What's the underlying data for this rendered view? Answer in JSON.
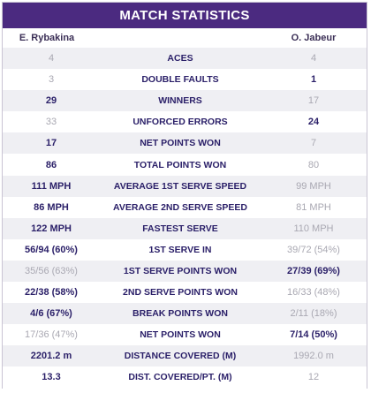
{
  "title": "MATCH STATISTICS",
  "players": {
    "left": "E. Rybakina",
    "right": "O. Jabeur"
  },
  "rows": [
    {
      "label": "ACES",
      "left": "4",
      "right": "4",
      "leader": "none"
    },
    {
      "label": "DOUBLE FAULTS",
      "left": "3",
      "right": "1",
      "leader": "right"
    },
    {
      "label": "WINNERS",
      "left": "29",
      "right": "17",
      "leader": "left"
    },
    {
      "label": "UNFORCED ERRORS",
      "left": "33",
      "right": "24",
      "leader": "right"
    },
    {
      "label": "NET POINTS WON",
      "left": "17",
      "right": "7",
      "leader": "left"
    },
    {
      "label": "TOTAL POINTS WON",
      "left": "86",
      "right": "80",
      "leader": "left"
    },
    {
      "label": "AVERAGE 1ST SERVE SPEED",
      "left": "111 MPH",
      "right": "99 MPH",
      "leader": "left"
    },
    {
      "label": "AVERAGE 2ND SERVE SPEED",
      "left": "86 MPH",
      "right": "81 MPH",
      "leader": "left"
    },
    {
      "label": "FASTEST SERVE",
      "left": "122 MPH",
      "right": "110 MPH",
      "leader": "left"
    },
    {
      "label": "1ST SERVE IN",
      "left": "56/94 (60%)",
      "right": "39/72 (54%)",
      "leader": "left"
    },
    {
      "label": "1ST SERVE POINTS WON",
      "left": "35/56 (63%)",
      "right": "27/39 (69%)",
      "leader": "right"
    },
    {
      "label": "2ND SERVE POINTS WON",
      "left": "22/38 (58%)",
      "right": "16/33 (48%)",
      "leader": "left"
    },
    {
      "label": "BREAK POINTS WON",
      "left": "4/6 (67%)",
      "right": "2/11 (18%)",
      "leader": "left"
    },
    {
      "label": "NET POINTS WON",
      "left": "17/36 (47%)",
      "right": "7/14 (50%)",
      "leader": "right"
    },
    {
      "label": "DISTANCE COVERED (M)",
      "left": "2201.2 m",
      "right": "1992.0 m",
      "leader": "left"
    },
    {
      "label": "DIST. COVERED/PT. (M)",
      "left": "13.3",
      "right": "12",
      "leader": "left"
    }
  ],
  "colors": {
    "header": "#4b2a80",
    "lead_text": "#2a1f68",
    "dim_text": "#a9a8b2"
  }
}
